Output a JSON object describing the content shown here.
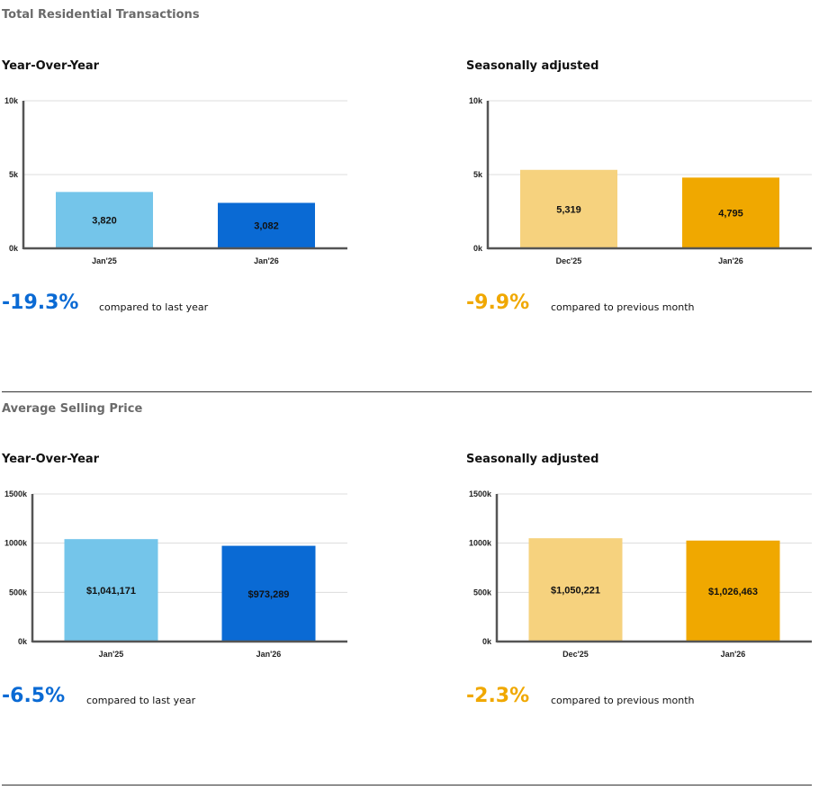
{
  "colors": {
    "yoy_prev": "#74c5ea",
    "yoy_curr": "#0a6ad4",
    "sa_prev": "#f6d27e",
    "sa_curr": "#f0a800",
    "blue_text": "#0a6ad4",
    "orange_text": "#f0a800"
  },
  "sections": [
    {
      "title": "Total Residential Transactions",
      "yoy": {
        "subtitle": "Year-Over-Year",
        "change": "-19.3%",
        "compare_text": "compared to last year"
      },
      "sa": {
        "subtitle": "Seasonally adjusted",
        "change": "-9.9%",
        "compare_text": "compared to previous month"
      }
    },
    {
      "title": "Average Selling Price",
      "yoy": {
        "subtitle": "Year-Over-Year",
        "change": "-6.5%",
        "compare_text": "compared to last year"
      },
      "sa": {
        "subtitle": "Seasonally adjusted",
        "change": "-2.3%",
        "compare_text": "compared to previous month"
      }
    }
  ],
  "chart_data": [
    {
      "type": "bar",
      "title": "Year-Over-Year",
      "categories": [
        "Jan'25",
        "Jan'26"
      ],
      "values": [
        3820,
        3082
      ],
      "data_labels": [
        "3,820",
        "3,082"
      ],
      "ylim": [
        0,
        10000
      ],
      "yticks": [
        0,
        5000,
        10000
      ],
      "ytick_labels": [
        "0k",
        "5k",
        "10k"
      ],
      "bar_colors": [
        "#74c5ea",
        "#0a6ad4"
      ]
    },
    {
      "type": "bar",
      "title": "Seasonally adjusted",
      "categories": [
        "Dec'25",
        "Jan'26"
      ],
      "values": [
        5319,
        4795
      ],
      "data_labels": [
        "5,319",
        "4,795"
      ],
      "ylim": [
        0,
        10000
      ],
      "yticks": [
        0,
        5000,
        10000
      ],
      "ytick_labels": [
        "0k",
        "5k",
        "10k"
      ],
      "bar_colors": [
        "#f6d27e",
        "#f0a800"
      ]
    },
    {
      "type": "bar",
      "title": "Year-Over-Year",
      "categories": [
        "Jan'25",
        "Jan'26"
      ],
      "values": [
        1041171,
        973289
      ],
      "data_labels": [
        "$1,041,171",
        "$973,289"
      ],
      "ylim": [
        0,
        1500000
      ],
      "yticks": [
        0,
        500000,
        1000000,
        1500000
      ],
      "ytick_labels": [
        "0k",
        "500k",
        "1000k",
        "1500k"
      ],
      "bar_colors": [
        "#74c5ea",
        "#0a6ad4"
      ]
    },
    {
      "type": "bar",
      "title": "Seasonally adjusted",
      "categories": [
        "Dec'25",
        "Jan'26"
      ],
      "values": [
        1050221,
        1026463
      ],
      "data_labels": [
        "$1,050,221",
        "$1,026,463"
      ],
      "ylim": [
        0,
        1500000
      ],
      "yticks": [
        0,
        500000,
        1000000,
        1500000
      ],
      "ytick_labels": [
        "0k",
        "500k",
        "1000k",
        "1500k"
      ],
      "bar_colors": [
        "#f6d27e",
        "#f0a800"
      ]
    }
  ]
}
